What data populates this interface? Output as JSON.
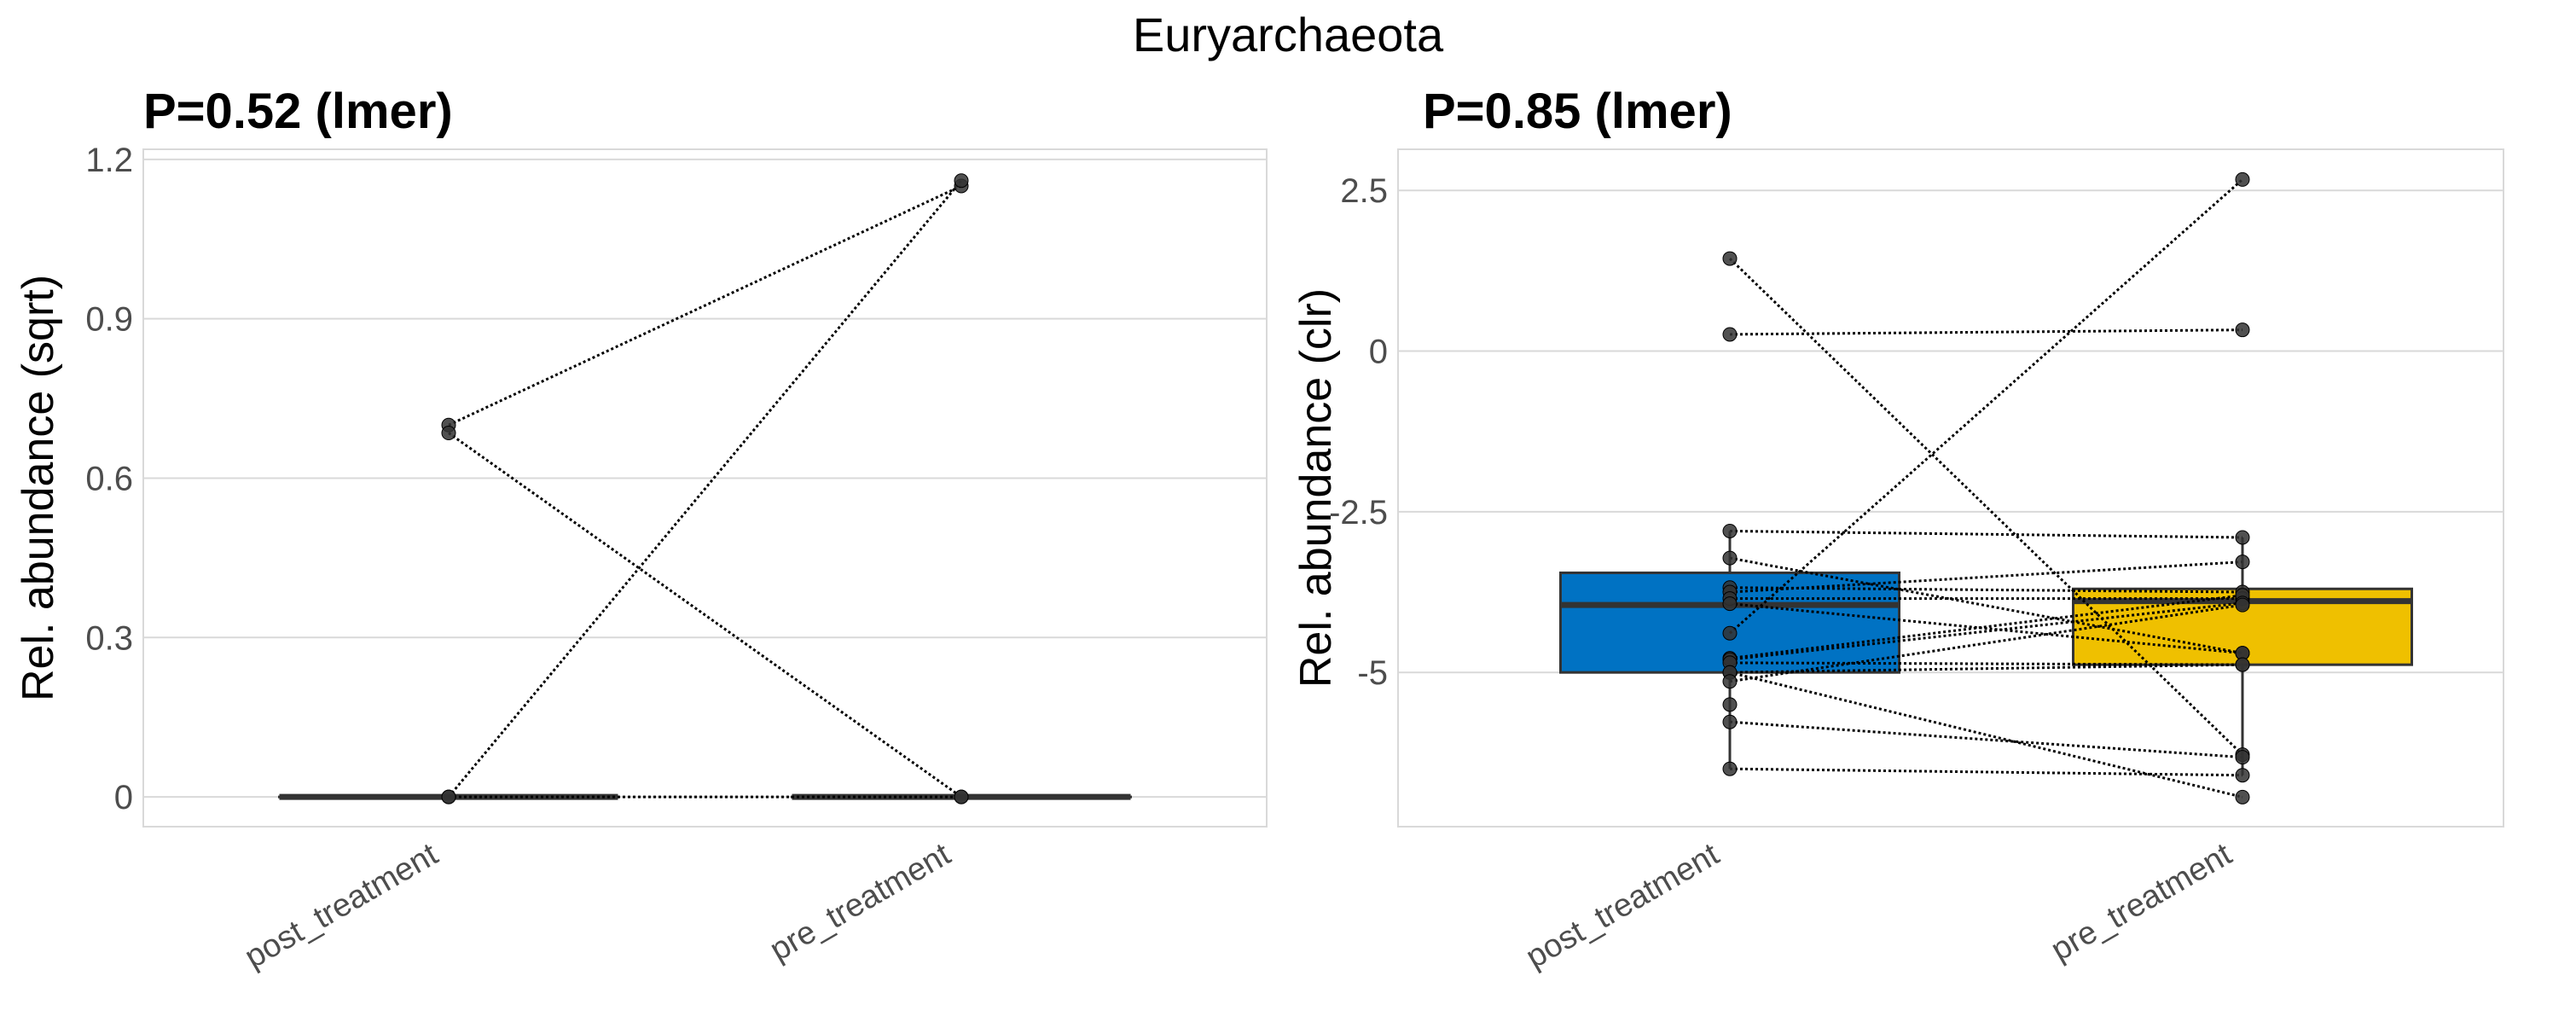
{
  "title": "Euryarchaeota",
  "colors": {
    "post": "#0072C3",
    "pre": "#EFC000",
    "grid": "#d9d9d9",
    "line": "#000000",
    "point": "#333333"
  },
  "chart_data": [
    {
      "type": "box",
      "title": "P=0.52 (lmer)",
      "ylabel": "Rel. abundance (sqrt)",
      "xlabel": "",
      "categories": [
        "post_treatment",
        "pre_treatment"
      ],
      "ylim": [
        -0.056,
        1.219
      ],
      "yticks": [
        0,
        0.3,
        0.6,
        0.9,
        1.2
      ],
      "ytick_labels": [
        "0",
        "0.3",
        "0.6",
        "0.9",
        "1.2"
      ],
      "grid": true,
      "fill_boxes": false,
      "boxes": [
        {
          "q1": 0,
          "median": 0,
          "q3": 0,
          "whisker_low": 0,
          "whisker_high": 0
        },
        {
          "q1": 0,
          "median": 0,
          "q3": 0,
          "whisker_low": 0,
          "whisker_high": 0
        }
      ],
      "pairs": [
        [
          0.7,
          1.15
        ],
        [
          0.685,
          0
        ],
        [
          0,
          1.16
        ],
        [
          0,
          0
        ]
      ],
      "extra_points": []
    },
    {
      "type": "box",
      "title": "P=0.85 (lmer)",
      "ylabel": "Rel. abundance (clr)",
      "xlabel": "",
      "categories": [
        "post_treatment",
        "pre_treatment"
      ],
      "ylim": [
        -7.4,
        3.14
      ],
      "yticks": [
        -5,
        -2.5,
        0,
        2.5
      ],
      "ytick_labels": [
        "-5",
        "-2.5",
        "0",
        "2.5"
      ],
      "grid": true,
      "fill_boxes": true,
      "boxes": [
        {
          "q1": -5.0,
          "median": -3.95,
          "q3": -3.45,
          "whisker_low": -6.5,
          "whisker_high": -2.8
        },
        {
          "q1": -4.88,
          "median": -3.89,
          "q3": -3.7,
          "whisker_low": -6.6,
          "whisker_high": -2.9
        }
      ],
      "pairs": [
        [
          1.44,
          -6.28
        ],
        [
          0.26,
          0.33
        ],
        [
          -4.39,
          2.67
        ],
        [
          -2.8,
          -2.9
        ],
        [
          -3.22,
          -4.7
        ],
        [
          -3.68,
          -3.75
        ],
        [
          -3.75,
          -3.28
        ],
        [
          -3.85,
          -3.85
        ],
        [
          -3.93,
          -4.7
        ],
        [
          -4.78,
          -3.8
        ],
        [
          -4.8,
          -3.92
        ],
        [
          -4.85,
          -4.88
        ],
        [
          -5.0,
          -4.88
        ],
        [
          -5.0,
          -6.94
        ],
        [
          -5.14,
          -3.95
        ],
        [
          -5.77,
          -6.32
        ],
        [
          -6.5,
          -6.6
        ]
      ],
      "extra_points": [
        [
          0,
          -5.5
        ]
      ]
    }
  ]
}
